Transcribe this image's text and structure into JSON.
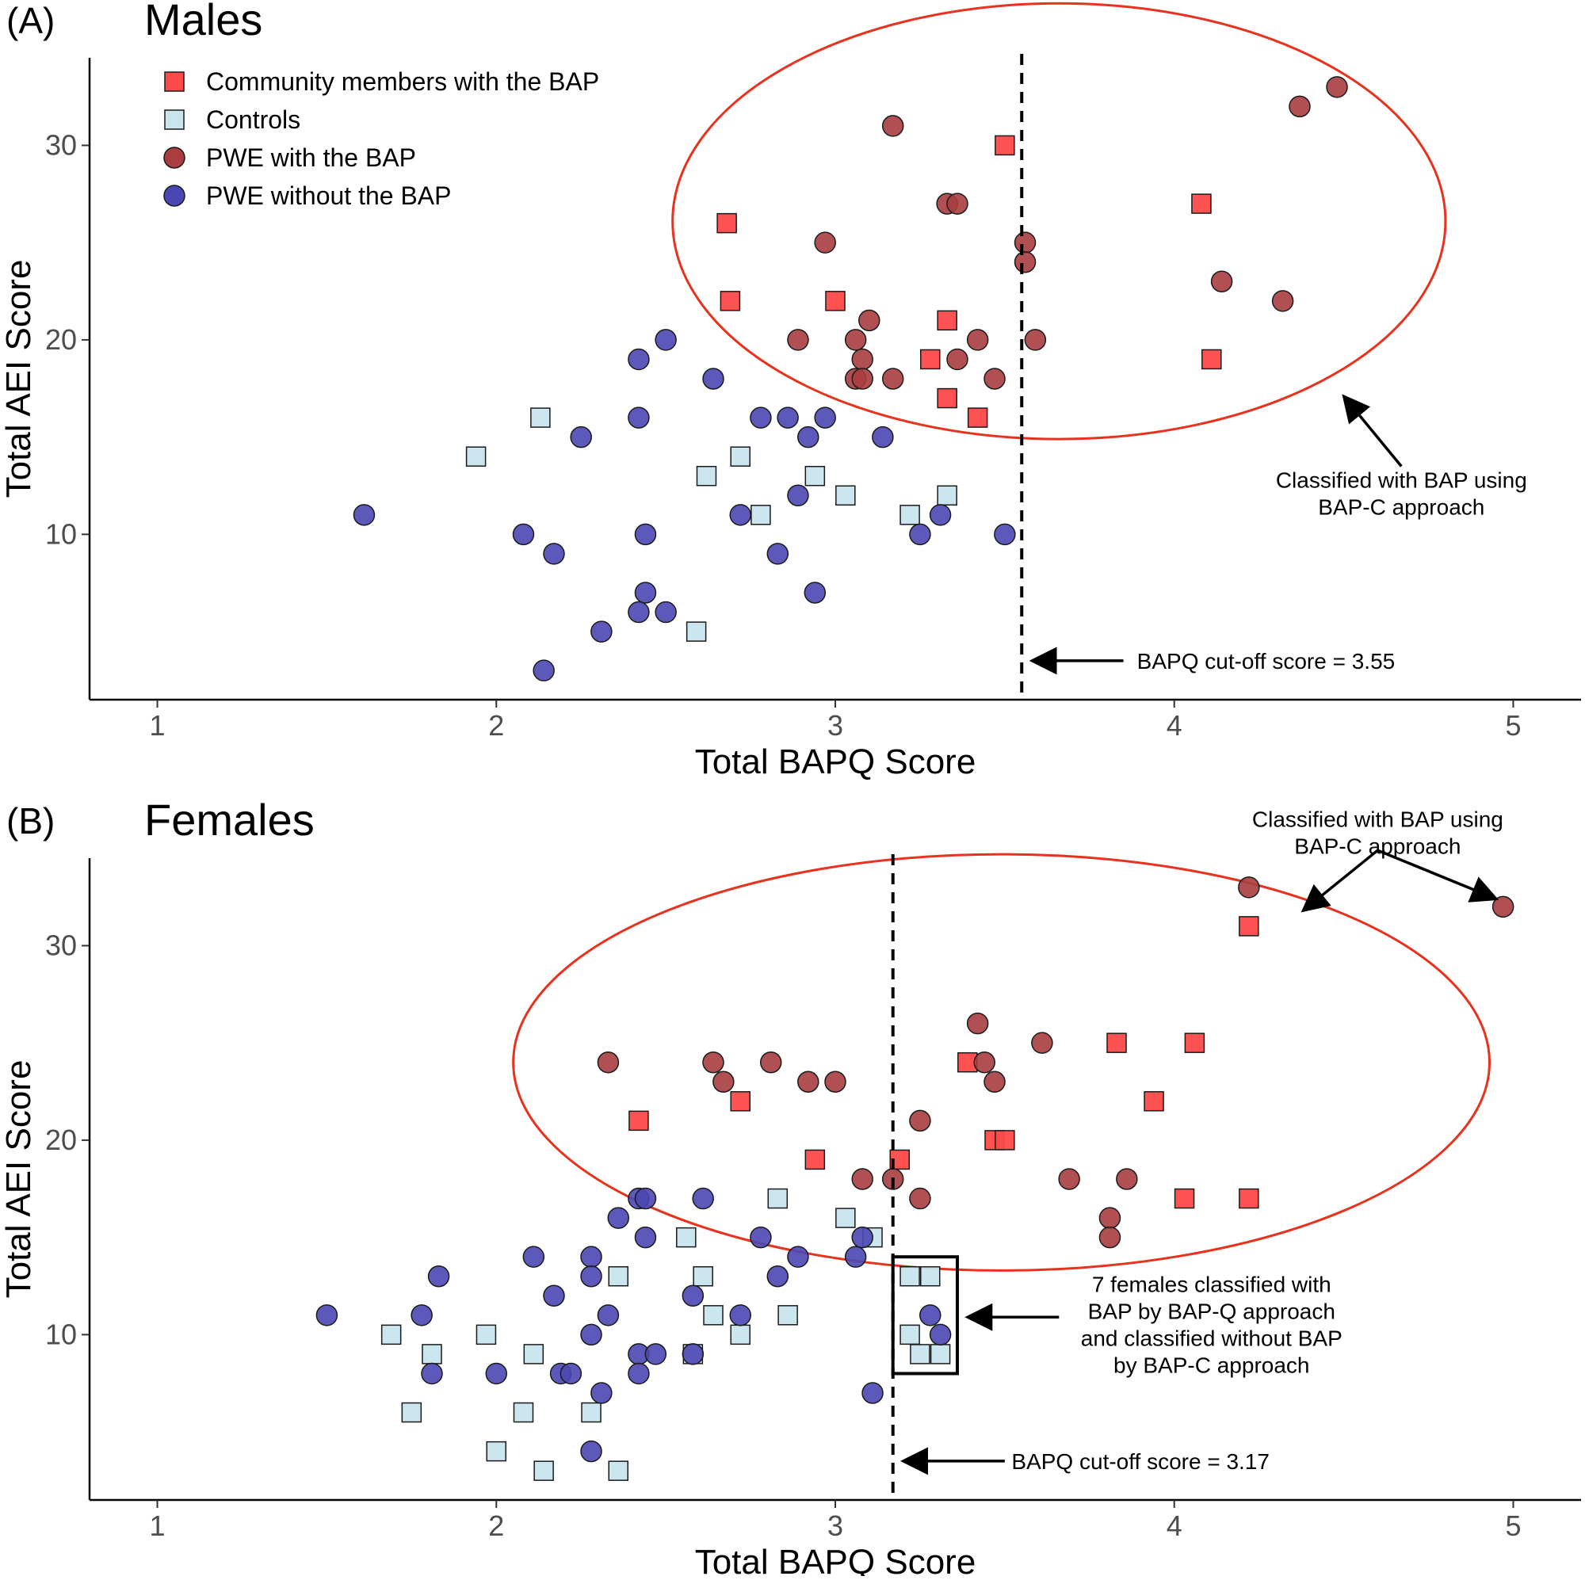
{
  "figure": {
    "legend": [
      {
        "label": "Community members with the BAP",
        "shape": "square",
        "color": "#ff4a4a"
      },
      {
        "label": "Controls",
        "shape": "square",
        "color": "#c9e5ee"
      },
      {
        "label": "PWE with the BAP",
        "shape": "circle",
        "color": "#a93d3f"
      },
      {
        "label": "PWE without the BAP",
        "shape": "circle",
        "color": "#4a47b3"
      }
    ],
    "colors": {
      "community_bap": "#ff4a4a",
      "controls": "#c9e5ee",
      "pwe_bap": "#a93d3f",
      "pwe_no_bap": "#4a47b3",
      "ellipse": "#e8321e",
      "marker_edge": "#1a1a1a"
    },
    "legend_position": "top-left"
  },
  "chart_data": [
    {
      "type": "scatter",
      "tag": "(A)",
      "title": "Males",
      "xlabel": "Total BAPQ Score",
      "ylabel": "Total AEI Score",
      "xlim": [
        0.8,
        5.2
      ],
      "ylim": [
        1.5,
        34.5
      ],
      "xticks": [
        1,
        2,
        3,
        4,
        5
      ],
      "yticks": [
        10,
        20,
        30
      ],
      "grid": false,
      "cutoff": {
        "x": 3.55,
        "label": "BAPQ cut-off score = 3.55"
      },
      "ellipse": {
        "cx": 3.66,
        "cy": 26.1,
        "rx": 1.14,
        "ry": 11.2
      },
      "annotations": [
        {
          "lines": [
            "Classified with BAP using",
            "BAP-C approach"
          ],
          "text_at": [
            4.67,
            12.4
          ],
          "arrows": [
            {
              "from": [
                4.67,
                13.5
              ],
              "to": [
                4.5,
                17.1
              ]
            }
          ]
        },
        {
          "lines": [
            "BAPQ cut-off score = 3.55"
          ],
          "text_at": [
            3.89,
            3.5
          ],
          "arrows": [
            {
              "from": [
                3.85,
                3.5
              ],
              "to": [
                3.58,
                3.5
              ]
            }
          ]
        }
      ],
      "series": [
        {
          "name": "Community members with the BAP",
          "marker": "square",
          "color": "#ff4a4a",
          "points": [
            [
              2.68,
              26
            ],
            [
              2.69,
              22
            ],
            [
              3.0,
              22
            ],
            [
              3.33,
              21
            ],
            [
              3.28,
              19
            ],
            [
              3.33,
              17
            ],
            [
              3.42,
              16
            ],
            [
              3.5,
              30
            ],
            [
              4.08,
              27
            ],
            [
              4.11,
              19
            ]
          ]
        },
        {
          "name": "Controls",
          "marker": "square",
          "color": "#c9e5ee",
          "points": [
            [
              1.94,
              14
            ],
            [
              2.13,
              16
            ],
            [
              2.62,
              13
            ],
            [
              2.72,
              14
            ],
            [
              2.78,
              11
            ],
            [
              2.94,
              13
            ],
            [
              3.03,
              12
            ],
            [
              3.22,
              11
            ],
            [
              3.33,
              12
            ],
            [
              2.59,
              5
            ]
          ]
        },
        {
          "name": "PWE with the BAP",
          "marker": "circle",
          "color": "#a93d3f",
          "points": [
            [
              3.17,
              31
            ],
            [
              3.33,
              27
            ],
            [
              3.36,
              27
            ],
            [
              2.97,
              25
            ],
            [
              3.56,
              25
            ],
            [
              3.56,
              24
            ],
            [
              3.1,
              21
            ],
            [
              2.89,
              20
            ],
            [
              3.06,
              20
            ],
            [
              3.42,
              20
            ],
            [
              3.59,
              20
            ],
            [
              3.08,
              19
            ],
            [
              3.36,
              19
            ],
            [
              3.06,
              18
            ],
            [
              3.08,
              18
            ],
            [
              3.17,
              18
            ],
            [
              3.47,
              18
            ],
            [
              4.37,
              32
            ],
            [
              4.48,
              33
            ],
            [
              4.14,
              23
            ],
            [
              4.32,
              22
            ]
          ]
        },
        {
          "name": "PWE without the BAP",
          "marker": "circle",
          "color": "#4a47b3",
          "points": [
            [
              2.42,
              19
            ],
            [
              2.5,
              20
            ],
            [
              2.64,
              18
            ],
            [
              2.42,
              16
            ],
            [
              2.78,
              16
            ],
            [
              2.86,
              16
            ],
            [
              2.97,
              16
            ],
            [
              2.92,
              15
            ],
            [
              3.14,
              15
            ],
            [
              2.25,
              15
            ],
            [
              2.89,
              12
            ],
            [
              2.72,
              11
            ],
            [
              3.31,
              11
            ],
            [
              1.61,
              11
            ],
            [
              2.08,
              10
            ],
            [
              2.44,
              10
            ],
            [
              3.25,
              10
            ],
            [
              3.5,
              10
            ],
            [
              2.17,
              9
            ],
            [
              2.83,
              9
            ],
            [
              2.44,
              7
            ],
            [
              2.94,
              7
            ],
            [
              2.42,
              6
            ],
            [
              2.5,
              6
            ],
            [
              2.31,
              5
            ],
            [
              2.14,
              3
            ]
          ]
        }
      ]
    },
    {
      "type": "scatter",
      "tag": "(B)",
      "title": "Females",
      "xlabel": "Total BAPQ Score",
      "ylabel": "Total AEI Score",
      "xlim": [
        0.8,
        5.2
      ],
      "ylim": [
        1.5,
        34.5
      ],
      "xticks": [
        1,
        2,
        3,
        4,
        5
      ],
      "yticks": [
        10,
        20,
        30
      ],
      "grid": false,
      "cutoff": {
        "x": 3.17,
        "label": "BAPQ cut-off score = 3.17"
      },
      "ellipse": {
        "cx": 3.49,
        "cy": 24.0,
        "rx": 1.44,
        "ry": 10.7
      },
      "box": {
        "x0": 3.17,
        "x1": 3.36,
        "y0": 8.0,
        "y1": 14.0
      },
      "annotations": [
        {
          "lines": [
            "Classified with BAP using",
            "BAP-C approach"
          ],
          "text_at": [
            4.6,
            36.1
          ],
          "arrows": [
            {
              "from": [
                4.6,
                34.9
              ],
              "to": [
                4.38,
                31.8
              ]
            },
            {
              "from": [
                4.6,
                34.9
              ],
              "to": [
                4.95,
                32.4
              ]
            }
          ]
        },
        {
          "lines": [
            "7 females classified with",
            "BAP by BAP-Q approach",
            "and classified without BAP",
            "by BAP-C approach"
          ],
          "text_at": [
            4.11,
            12.2
          ],
          "arrows": [
            {
              "from": [
                3.66,
                10.9
              ],
              "to": [
                3.39,
                10.9
              ]
            }
          ]
        },
        {
          "lines": [
            "BAPQ cut-off score = 3.17"
          ],
          "text_at": [
            3.52,
            3.5
          ],
          "arrows": [
            {
              "from": [
                3.5,
                3.5
              ],
              "to": [
                3.2,
                3.5
              ]
            }
          ]
        }
      ],
      "series": [
        {
          "name": "Community members with the BAP",
          "marker": "square",
          "color": "#ff4a4a",
          "points": [
            [
              4.22,
              31
            ],
            [
              3.83,
              25
            ],
            [
              4.06,
              25
            ],
            [
              3.39,
              24
            ],
            [
              3.94,
              22
            ],
            [
              2.72,
              22
            ],
            [
              3.47,
              20
            ],
            [
              3.5,
              20
            ],
            [
              2.42,
              21
            ],
            [
              2.94,
              19
            ],
            [
              3.19,
              19
            ],
            [
              4.03,
              17
            ],
            [
              4.22,
              17
            ]
          ]
        },
        {
          "name": "Controls",
          "marker": "square",
          "color": "#c9e5ee",
          "points": [
            [
              2.83,
              17
            ],
            [
              3.03,
              16
            ],
            [
              2.56,
              15
            ],
            [
              3.11,
              15
            ],
            [
              3.22,
              13
            ],
            [
              3.28,
              13
            ],
            [
              2.36,
              13
            ],
            [
              2.61,
              13
            ],
            [
              2.64,
              11
            ],
            [
              2.86,
              11
            ],
            [
              3.22,
              10
            ],
            [
              2.72,
              10
            ],
            [
              1.69,
              10
            ],
            [
              1.97,
              10
            ],
            [
              1.81,
              9
            ],
            [
              2.11,
              9
            ],
            [
              2.58,
              9
            ],
            [
              3.25,
              9
            ],
            [
              3.31,
              9
            ],
            [
              1.75,
              6
            ],
            [
              2.08,
              6
            ],
            [
              2.28,
              6
            ],
            [
              2.0,
              4
            ],
            [
              2.14,
              3
            ],
            [
              2.36,
              3
            ]
          ]
        },
        {
          "name": "PWE with the BAP",
          "marker": "circle",
          "color": "#a93d3f",
          "points": [
            [
              4.22,
              33
            ],
            [
              4.97,
              32
            ],
            [
              3.42,
              26
            ],
            [
              3.61,
              25
            ],
            [
              3.44,
              24
            ],
            [
              2.33,
              24
            ],
            [
              2.64,
              24
            ],
            [
              2.81,
              24
            ],
            [
              3.47,
              23
            ],
            [
              2.67,
              23
            ],
            [
              2.92,
              23
            ],
            [
              3.0,
              23
            ],
            [
              3.25,
              21
            ],
            [
              3.08,
              18
            ],
            [
              3.17,
              18
            ],
            [
              3.69,
              18
            ],
            [
              3.86,
              18
            ],
            [
              3.25,
              17
            ],
            [
              3.81,
              16
            ],
            [
              3.81,
              15
            ]
          ]
        },
        {
          "name": "PWE without the BAP",
          "marker": "circle",
          "color": "#4a47b3",
          "points": [
            [
              2.36,
              16
            ],
            [
              2.42,
              17
            ],
            [
              2.44,
              17
            ],
            [
              2.61,
              17
            ],
            [
              2.44,
              15
            ],
            [
              2.78,
              15
            ],
            [
              3.08,
              15
            ],
            [
              3.06,
              14
            ],
            [
              2.11,
              14
            ],
            [
              2.28,
              14
            ],
            [
              2.89,
              14
            ],
            [
              1.83,
              13
            ],
            [
              2.28,
              13
            ],
            [
              2.83,
              13
            ],
            [
              3.28,
              11
            ],
            [
              2.17,
              12
            ],
            [
              2.58,
              12
            ],
            [
              1.5,
              11
            ],
            [
              1.78,
              11
            ],
            [
              2.33,
              11
            ],
            [
              2.72,
              11
            ],
            [
              3.31,
              10
            ],
            [
              2.28,
              10
            ],
            [
              2.42,
              9
            ],
            [
              2.47,
              9
            ],
            [
              2.58,
              9
            ],
            [
              1.81,
              8
            ],
            [
              2.0,
              8
            ],
            [
              2.19,
              8
            ],
            [
              2.22,
              8
            ],
            [
              2.42,
              8
            ],
            [
              2.31,
              7
            ],
            [
              3.11,
              7
            ],
            [
              2.28,
              4
            ]
          ]
        }
      ]
    }
  ]
}
